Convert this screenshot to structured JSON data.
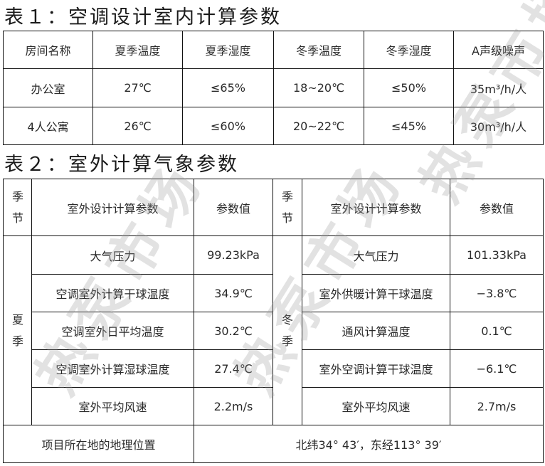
{
  "table1": {
    "title": "表１：空调设计室内计算参数",
    "headers": [
      "房间名称",
      "夏季温度",
      "夏季湿度",
      "冬季温度",
      "冬季湿度",
      "A声级噪声"
    ],
    "rows": [
      [
        "办公室",
        "27℃",
        "≤65%",
        "18~20℃",
        "≤50%",
        "35m³/h/人"
      ],
      [
        "4人公寓",
        "26℃",
        "≤60%",
        "20~22℃",
        "≤45%",
        "30m³/h/人"
      ]
    ]
  },
  "table2": {
    "title": "表２：室外计算气象参数",
    "header": {
      "season": "季节",
      "param": "室外设计计算参数",
      "value": "参数值"
    },
    "summer": {
      "label": "夏季",
      "rows": [
        [
          "大气压力",
          "99.23kPa"
        ],
        [
          "空调室外计算干球温度",
          "34.9℃"
        ],
        [
          "空调室外日平均温度",
          "30.2℃"
        ],
        [
          "空调室外计算湿球温度",
          "27.4℃"
        ],
        [
          "室外平均风速",
          "2.2m/s"
        ]
      ]
    },
    "winter": {
      "label": "冬季",
      "rows": [
        [
          "大气压力",
          "101.33kPa"
        ],
        [
          "室外供暖计算干球温度",
          "−3.8℃"
        ],
        [
          "通风计算温度",
          "0.1℃"
        ],
        [
          "室外空调计算干球温度",
          "−6.1℃"
        ],
        [
          "室外平均风速",
          "2.7m/s"
        ]
      ]
    },
    "location_label": "项目所在地的地理位置",
    "location_value": "北纬34° 43′，东经113° 39′"
  },
  "watermark": "热泵市场"
}
